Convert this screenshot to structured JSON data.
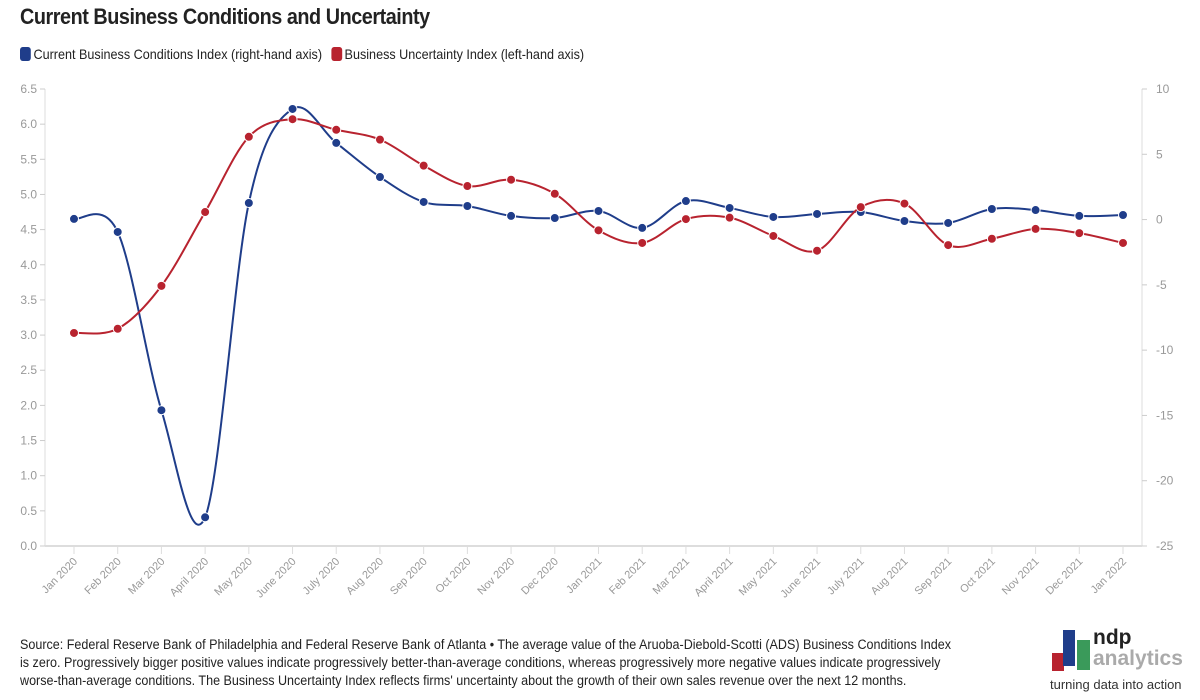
{
  "chart_data": {
    "type": "line",
    "title": "Current Business Conditions and Uncertainty",
    "categories": [
      "Jan 2020",
      "Feb 2020",
      "Mar 2020",
      "April 2020",
      "May 2020",
      "June 2020",
      "July 2020",
      "Aug 2020",
      "Sep 2020",
      "Oct 2020",
      "Nov 2020",
      "Dec 2020",
      "Jan 2021",
      "Feb 2021",
      "Mar 2021",
      "April 2021",
      "May 2021",
      "June 2021",
      "July 2021",
      "Aug 2021",
      "Sep 2021",
      "Oct 2021",
      "Nov 2021",
      "Dec 2021",
      "Jan 2022"
    ],
    "series": [
      {
        "name": "Current Business Conditions Index (right-hand axis)",
        "axis": "right",
        "color": "#1f3d8a",
        "values": [
          0.05,
          -0.95,
          -14.6,
          -22.8,
          1.27,
          8.47,
          5.87,
          3.26,
          1.35,
          1.04,
          0.28,
          0.12,
          0.66,
          -0.64,
          1.42,
          0.89,
          0.2,
          0.43,
          0.58,
          -0.11,
          -0.26,
          0.81,
          0.73,
          0.28,
          0.35
        ]
      },
      {
        "name": "Business Uncertainty Index (left-hand axis)",
        "axis": "left",
        "color": "#b8232f",
        "values": [
          3.03,
          3.09,
          3.7,
          4.75,
          5.82,
          6.07,
          5.92,
          5.78,
          5.41,
          5.12,
          5.21,
          5.01,
          4.49,
          4.31,
          4.65,
          4.67,
          4.41,
          4.2,
          4.82,
          4.87,
          4.28,
          4.37,
          4.51,
          4.45,
          4.31
        ]
      }
    ],
    "left_axis": {
      "range": [
        0,
        6.5
      ],
      "ticks": [
        "0.0",
        "0.5",
        "1.0",
        "1.5",
        "2.0",
        "2.5",
        "3.0",
        "3.5",
        "4.0",
        "4.5",
        "5.0",
        "5.5",
        "6.0",
        "6.5"
      ]
    },
    "right_axis": {
      "range": [
        -25,
        10
      ],
      "ticks": [
        "-25",
        "-20",
        "-15",
        "-10",
        "-5",
        "0",
        "5",
        "10"
      ]
    },
    "legend": "top-left",
    "grid": false
  },
  "source_text": "Source: Federal Reserve Bank of Philadelphia and Federal Reserve Bank of Atlanta • The average value of the Aruoba-Diebold-Scotti (ADS) Business Conditions Index is zero. Progressively bigger positive values indicate progressively better-than-average conditions, whereas progressively more negative values indicate progressively worse-than-average conditions. The Business Uncertainty Index reflects firms' uncertainty about the growth of their own sales revenue over the next 12 months.",
  "logo": {
    "line1": "ndp",
    "line2": "analytics",
    "tagline": "turning data into action"
  }
}
